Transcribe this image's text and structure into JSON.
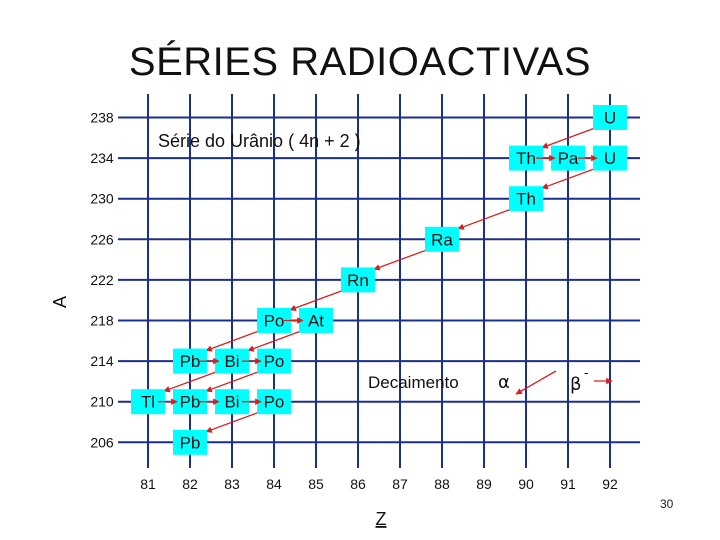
{
  "title": "SÉRIES RADIOACTIVAS",
  "page_number": "30",
  "chart_data": {
    "type": "table",
    "subtitle": "Série do Urânio ( 4n + 2 )",
    "xlabel": "Z",
    "ylabel": "A",
    "x_ticks": [
      81,
      82,
      83,
      84,
      85,
      86,
      87,
      88,
      89,
      90,
      91,
      92
    ],
    "y_ticks": [
      238,
      234,
      230,
      226,
      222,
      218,
      214,
      210,
      206
    ],
    "grid": true,
    "colors": {
      "grid": "#1b2f8f",
      "box": "#00ffff",
      "arrow": "#d42020",
      "text": "#111111"
    },
    "nuclides": [
      {
        "symbol": "U",
        "z": 92,
        "a": 238
      },
      {
        "symbol": "Th",
        "z": 90,
        "a": 234
      },
      {
        "symbol": "Pa",
        "z": 91,
        "a": 234
      },
      {
        "symbol": "U",
        "z": 92,
        "a": 234
      },
      {
        "symbol": "Th",
        "z": 90,
        "a": 230
      },
      {
        "symbol": "Ra",
        "z": 88,
        "a": 226
      },
      {
        "symbol": "Rn",
        "z": 86,
        "a": 222
      },
      {
        "symbol": "Po",
        "z": 84,
        "a": 218
      },
      {
        "symbol": "At",
        "z": 85,
        "a": 218
      },
      {
        "symbol": "Pb",
        "z": 82,
        "a": 214
      },
      {
        "symbol": "Bi",
        "z": 83,
        "a": 214
      },
      {
        "symbol": "Po",
        "z": 84,
        "a": 214
      },
      {
        "symbol": "Tl",
        "z": 81,
        "a": 210
      },
      {
        "symbol": "Pb",
        "z": 82,
        "a": 210
      },
      {
        "symbol": "Bi",
        "z": 83,
        "a": 210
      },
      {
        "symbol": "Po",
        "z": 84,
        "a": 210
      },
      {
        "symbol": "Pb",
        "z": 82,
        "a": 206
      }
    ],
    "alpha_decays": [
      {
        "from": [
          92,
          238
        ],
        "to": [
          90,
          234
        ]
      },
      {
        "from": [
          92,
          234
        ],
        "to": [
          90,
          230
        ]
      },
      {
        "from": [
          90,
          230
        ],
        "to": [
          88,
          226
        ]
      },
      {
        "from": [
          88,
          226
        ],
        "to": [
          86,
          222
        ]
      },
      {
        "from": [
          86,
          222
        ],
        "to": [
          84,
          218
        ]
      },
      {
        "from": [
          84,
          218
        ],
        "to": [
          82,
          214
        ]
      },
      {
        "from": [
          85,
          218
        ],
        "to": [
          83,
          214
        ]
      },
      {
        "from": [
          83,
          214
        ],
        "to": [
          81,
          210
        ]
      },
      {
        "from": [
          84,
          214
        ],
        "to": [
          82,
          210
        ]
      },
      {
        "from": [
          84,
          210
        ],
        "to": [
          82,
          206
        ]
      }
    ],
    "beta_decays": [
      {
        "from": [
          90,
          234
        ],
        "to": [
          91,
          234
        ]
      },
      {
        "from": [
          91,
          234
        ],
        "to": [
          92,
          234
        ]
      },
      {
        "from": [
          84,
          218
        ],
        "to": [
          85,
          218
        ]
      },
      {
        "from": [
          82,
          214
        ],
        "to": [
          83,
          214
        ]
      },
      {
        "from": [
          83,
          214
        ],
        "to": [
          84,
          214
        ]
      },
      {
        "from": [
          81,
          210
        ],
        "to": [
          82,
          210
        ]
      },
      {
        "from": [
          82,
          210
        ],
        "to": [
          83,
          210
        ]
      },
      {
        "from": [
          83,
          210
        ],
        "to": [
          84,
          210
        ]
      }
    ],
    "legend": {
      "label": "Decaimento",
      "alpha_symbol": "α",
      "beta_symbol": "β",
      "beta_superscript": "-"
    }
  }
}
